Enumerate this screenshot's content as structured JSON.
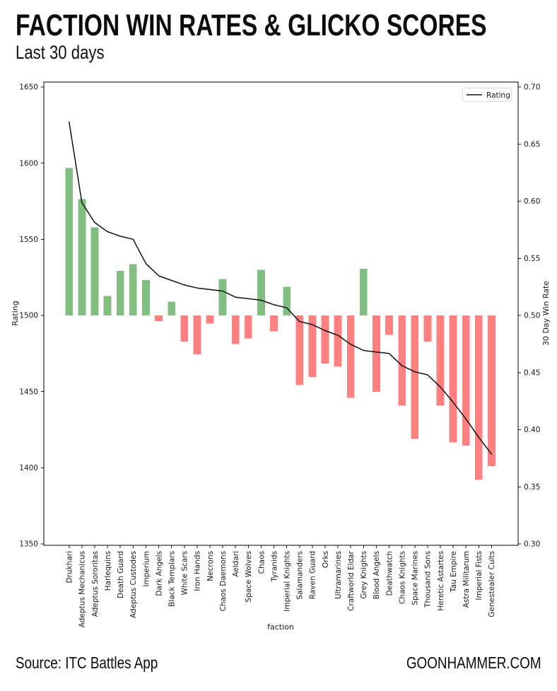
{
  "header": {
    "title": "FACTION WIN RATES & GLICKO SCORES",
    "subtitle": "Last 30 days"
  },
  "footer": {
    "source": "Source: ITC Battles App",
    "site": "GOONHAMMER.COM"
  },
  "chart_data": {
    "type": "bar+line",
    "title": "FACTION WIN RATES & GLICKO SCORES",
    "subtitle": "Last 30 days",
    "xlabel": "faction",
    "ylabel_left": "Rating",
    "ylabel_right": "30 Day Win Rate",
    "legend": [
      {
        "label": "Rating",
        "type": "line",
        "color": "#111111"
      }
    ],
    "legend_position": "upper right",
    "grid": false,
    "baseline_win_rate": 0.5,
    "left_axis": {
      "min": 1350,
      "max": 1650,
      "ticks": [
        1350,
        1400,
        1450,
        1500,
        1550,
        1600,
        1650
      ]
    },
    "right_axis": {
      "min": 0.3,
      "max": 0.7,
      "ticks": [
        0.3,
        0.35,
        0.4,
        0.45,
        0.5,
        0.55,
        0.6,
        0.65,
        0.7
      ]
    },
    "colors": {
      "bar_above": "#80bf80",
      "bar_below": "#ff8080",
      "line": "#111111"
    },
    "categories": [
      "Drukhari",
      "Adeptus Mechanicus",
      "Adeptus Sororitas",
      "Harlequins",
      "Death Guard",
      "Adeptus Custodes",
      "Imperium",
      "Dark Angels",
      "Black Templars",
      "White Scars",
      "Iron Hands",
      "Necrons",
      "Chaos Daemons",
      "Aeldari",
      "Space Wolves",
      "Chaos",
      "Tyranids",
      "Imperial Knights",
      "Salamanders",
      "Raven Guard",
      "Orks",
      "Ultramarines",
      "Craftworld Eldar",
      "Grey Knights",
      "Blood Angels",
      "Deathwatch",
      "Chaos Knights",
      "Space Marines",
      "Thousand Sons",
      "Heretic Astartes",
      "Tau Empire",
      "Astra Militarum",
      "Imperial Fists",
      "Genestealer Cults"
    ],
    "series": [
      {
        "name": "30 Day Win Rate",
        "type": "bar",
        "axis": "right",
        "values": [
          0.629,
          0.602,
          0.577,
          0.517,
          0.539,
          0.545,
          0.531,
          0.495,
          0.512,
          0.477,
          0.466,
          0.493,
          0.532,
          0.475,
          0.48,
          0.54,
          0.486,
          0.525,
          0.439,
          0.446,
          0.458,
          0.455,
          0.428,
          0.541,
          0.433,
          0.483,
          0.421,
          0.392,
          0.477,
          0.421,
          0.389,
          0.386,
          0.356,
          0.368
        ]
      },
      {
        "name": "Rating",
        "type": "line",
        "axis": "left",
        "values": [
          1627,
          1574,
          1561,
          1555,
          1552,
          1550,
          1534,
          1526,
          1523,
          1520,
          1518,
          1517,
          1516,
          1512,
          1511,
          1510,
          1507,
          1505,
          1496,
          1494,
          1490,
          1487,
          1481,
          1477,
          1476,
          1475,
          1467,
          1463,
          1461,
          1453,
          1443,
          1432,
          1420,
          1409
        ]
      }
    ]
  }
}
